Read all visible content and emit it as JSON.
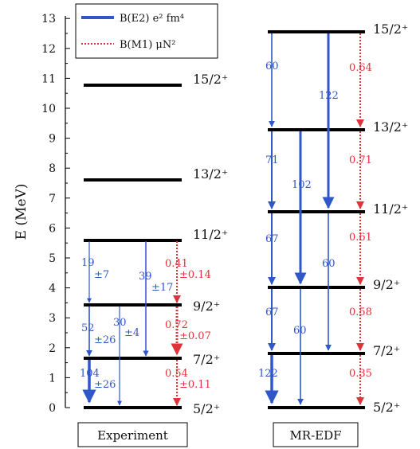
{
  "axis": {
    "title": "E (MeV)",
    "ticks": [
      "0",
      "1",
      "2",
      "3",
      "4",
      "5",
      "6",
      "7",
      "8",
      "9",
      "10",
      "11",
      "12",
      "13"
    ]
  },
  "legend": {
    "e2_label": "B(E2) e² fm⁴",
    "m1_label": "B(M1) μN²"
  },
  "colors": {
    "e2": "#2f57c9",
    "m1": "#e0323a",
    "level": "#000000"
  },
  "panels": {
    "experiment": {
      "title": "Experiment",
      "levels": [
        {
          "label": "5/2⁺",
          "energy": 0
        },
        {
          "label": "7/2⁺",
          "energy": 1.7
        },
        {
          "label": "9/2⁺",
          "energy": 3.45
        },
        {
          "label": "11/2⁺",
          "energy": 5.55
        },
        {
          "label": "13/2⁺",
          "energy": 7.55
        },
        {
          "label": "15/2⁺",
          "energy": 10.7
        }
      ],
      "e2_transitions": [
        {
          "value": "19",
          "err": "±7"
        },
        {
          "value": "39",
          "err": "±17"
        },
        {
          "value": "52",
          "err": "±26"
        },
        {
          "value": "30",
          "err": "±4"
        },
        {
          "value": "104",
          "err": "±26"
        }
      ],
      "m1_transitions": [
        {
          "value": "0.41",
          "err": "±0.14"
        },
        {
          "value": "0.72",
          "err": "±0.07"
        },
        {
          "value": "0.54",
          "err": "±0.11"
        }
      ]
    },
    "mredf": {
      "title": "MR-EDF",
      "levels": [
        {
          "label": "5/2⁺",
          "energy": 0
        },
        {
          "label": "7/2⁺",
          "energy": 1.8
        },
        {
          "label": "9/2⁺",
          "energy": 4.0
        },
        {
          "label": "11/2⁺",
          "energy": 6.5
        },
        {
          "label": "13/2⁺",
          "energy": 9.2
        },
        {
          "label": "15/2⁺",
          "energy": 12.5
        }
      ],
      "e2_transitions": [
        "60",
        "122",
        "71",
        "102",
        "67",
        "60",
        "67",
        "60",
        "122"
      ],
      "m1_transitions": [
        "0.64",
        "0.71",
        "0.61",
        "0.58",
        "0.35"
      ]
    }
  }
}
